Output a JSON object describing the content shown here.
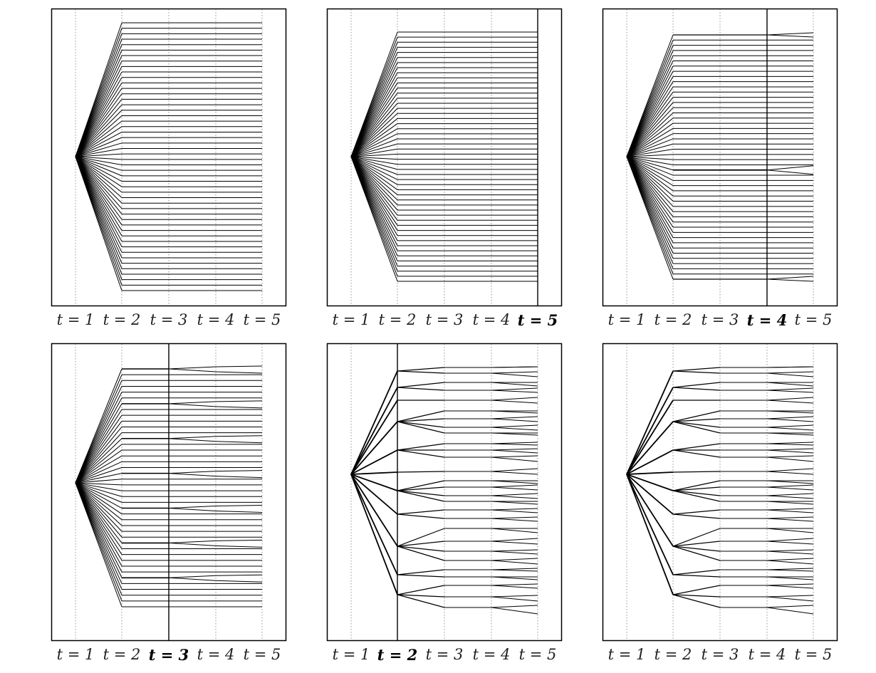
{
  "time_labels": [
    "t = 1",
    "t = 2",
    "t = 3",
    "t = 4",
    "t = 5"
  ],
  "panels": [
    {
      "id": "top-left",
      "reduced_stage": null,
      "scenarios": 50
    },
    {
      "id": "top-middle",
      "reduced_stage": 5,
      "scenarios": 50
    },
    {
      "id": "top-right",
      "reduced_stage": 4,
      "scenarios": 50
    },
    {
      "id": "bottom-left",
      "reduced_stage": 3,
      "scenarios": 50
    },
    {
      "id": "bottom-middle",
      "reduced_stage": 2,
      "scenarios": 50
    },
    {
      "id": "bottom-right",
      "reduced_stage": null,
      "scenarios": 50
    }
  ],
  "colors": {
    "line": "#000000",
    "grid": "#888888",
    "frame": "#000000"
  }
}
